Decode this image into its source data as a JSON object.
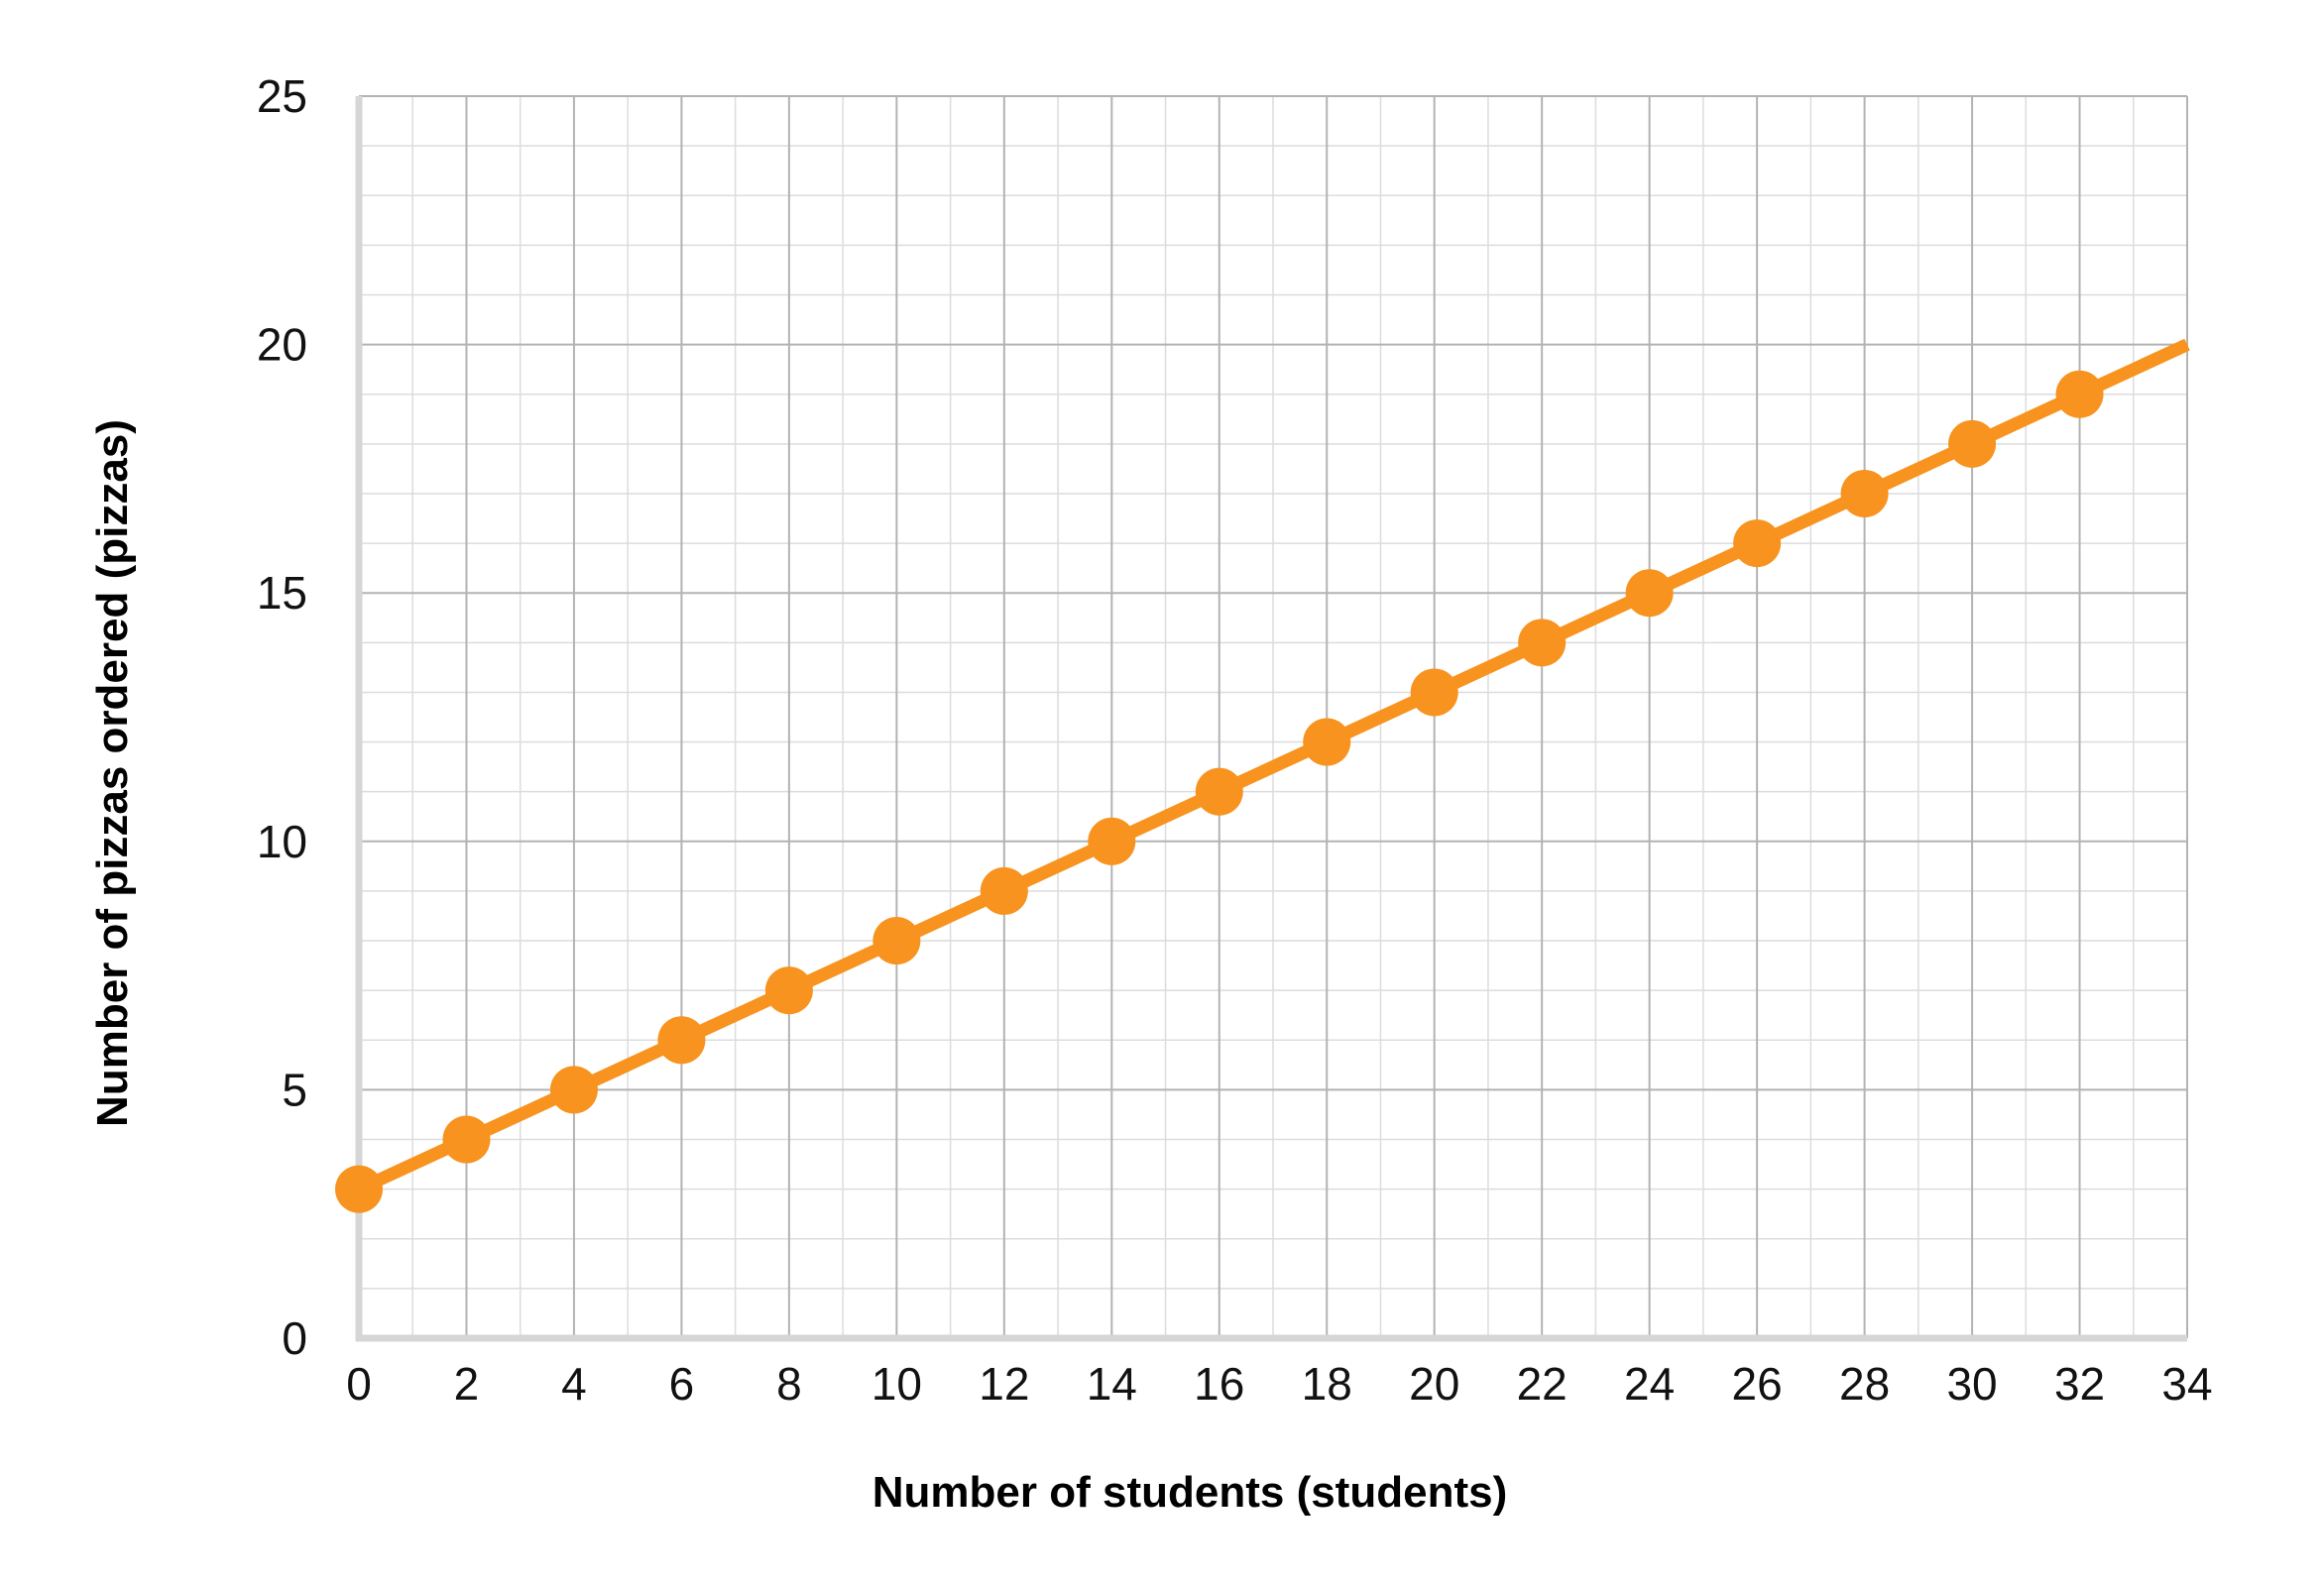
{
  "chart_data": {
    "type": "line",
    "title": "",
    "xlabel": "Number of students (students)",
    "ylabel": "Number of pizzas ordered (pizzas)",
    "xlim": [
      0,
      34
    ],
    "ylim": [
      0,
      25
    ],
    "x_ticks": [
      "0",
      "2",
      "4",
      "6",
      "8",
      "10",
      "12",
      "14",
      "16",
      "18",
      "20",
      "22",
      "24",
      "26",
      "28",
      "30",
      "32",
      "34"
    ],
    "y_ticks": [
      "0",
      "5",
      "10",
      "15",
      "20",
      "25"
    ],
    "grid": true,
    "colors": {
      "line": "#F7931E",
      "grid_major": "#b3b3b3",
      "grid_minor": "#dcdcdc",
      "axis": "#d6d6d6"
    },
    "series": [
      {
        "x": [
          0,
          2,
          4,
          6,
          8,
          10,
          12,
          14,
          16,
          18,
          20,
          22,
          24,
          26,
          28,
          30,
          32
        ],
        "y": [
          3,
          4,
          5,
          6,
          7,
          8,
          9,
          10,
          11,
          12,
          13,
          14,
          15,
          16,
          17,
          18,
          19
        ],
        "line_extends_to": [
          34,
          20
        ]
      }
    ]
  }
}
